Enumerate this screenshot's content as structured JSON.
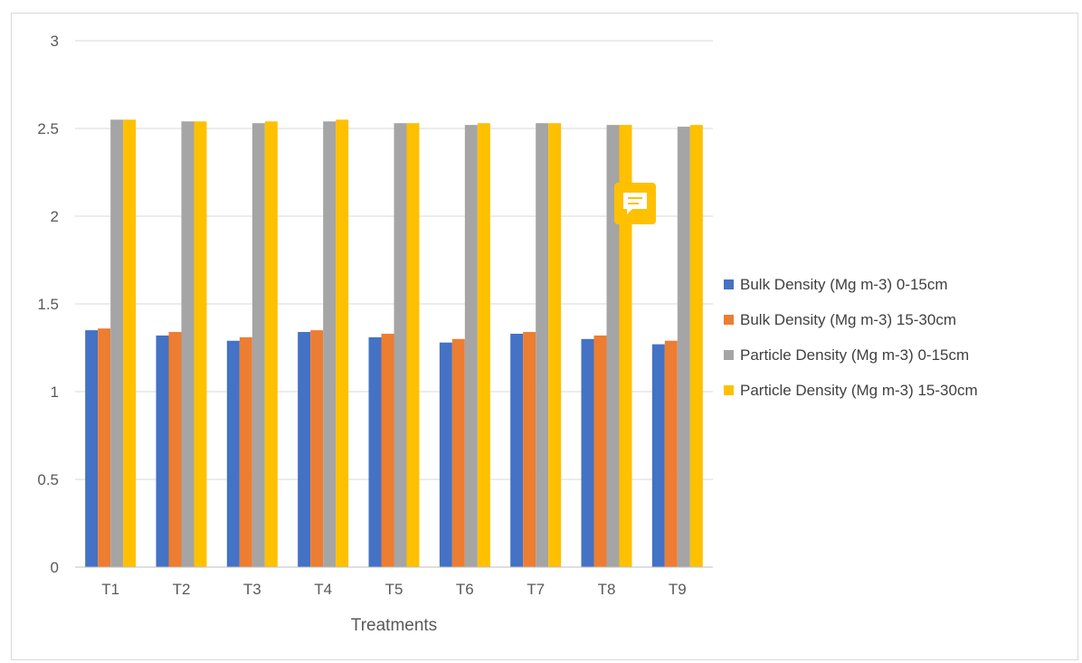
{
  "chart_data": {
    "type": "bar",
    "title": "",
    "xlabel": "Treatments",
    "ylabel": "",
    "ylim": [
      0,
      3
    ],
    "yticks": [
      "0",
      "0.5",
      "1",
      "1.5",
      "2",
      "2.5",
      "3"
    ],
    "grid": true,
    "legend_position": "right",
    "categories": [
      "T1",
      "T2",
      "T3",
      "T4",
      "T5",
      "T6",
      "T7",
      "T8",
      "T9"
    ],
    "series": [
      {
        "name": "Bulk Density (Mg m-3) 0-15cm",
        "color": "#4472c4",
        "values": [
          1.35,
          1.32,
          1.29,
          1.34,
          1.31,
          1.28,
          1.33,
          1.3,
          1.27
        ]
      },
      {
        "name": "Bulk Density (Mg m-3) 15-30cm",
        "color": "#ed7d31",
        "values": [
          1.36,
          1.34,
          1.31,
          1.35,
          1.33,
          1.3,
          1.34,
          1.32,
          1.29
        ]
      },
      {
        "name": "Particle Density (Mg m-3) 0-15cm",
        "color": "#a5a5a5",
        "values": [
          2.55,
          2.54,
          2.53,
          2.54,
          2.53,
          2.52,
          2.53,
          2.52,
          2.51
        ]
      },
      {
        "name": "Particle Density (Mg m-3) 15-30cm",
        "color": "#ffc000",
        "values": [
          2.55,
          2.54,
          2.54,
          2.55,
          2.53,
          2.53,
          2.53,
          2.52,
          2.52
        ]
      }
    ]
  },
  "overlay": {
    "comment_icon": "comment-icon",
    "comment_color": "#ffc000"
  }
}
